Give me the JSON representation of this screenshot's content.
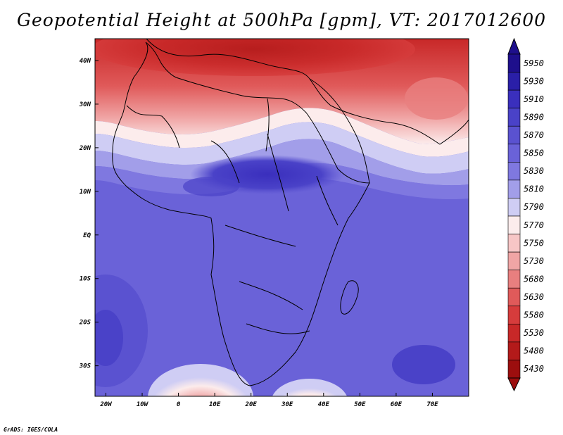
{
  "title": "Geopotential Height at 500hPa [gpm], VT: 2017012600",
  "credit": "GrADS: IGES/COLA",
  "map": {
    "lon_range": [
      -23,
      80
    ],
    "lat_range": [
      -37,
      45
    ],
    "lat_labels": [
      {
        "lat": 40,
        "text": "40N"
      },
      {
        "lat": 30,
        "text": "30N"
      },
      {
        "lat": 20,
        "text": "20N"
      },
      {
        "lat": 10,
        "text": "10N"
      },
      {
        "lat": 0,
        "text": "EQ"
      },
      {
        "lat": -10,
        "text": "10S"
      },
      {
        "lat": -20,
        "text": "20S"
      },
      {
        "lat": -30,
        "text": "30S"
      }
    ],
    "lon_labels": [
      {
        "lon": -20,
        "text": "20W"
      },
      {
        "lon": -10,
        "text": "10W"
      },
      {
        "lon": 0,
        "text": "0"
      },
      {
        "lon": 10,
        "text": "10E"
      },
      {
        "lon": 20,
        "text": "20E"
      },
      {
        "lon": 30,
        "text": "30E"
      },
      {
        "lon": 40,
        "text": "40E"
      },
      {
        "lon": 50,
        "text": "50E"
      },
      {
        "lon": 60,
        "text": "60E"
      },
      {
        "lon": 70,
        "text": "70E"
      }
    ]
  },
  "colorbar": {
    "levels": [
      "5950",
      "5930",
      "5910",
      "5890",
      "5870",
      "5850",
      "5830",
      "5810",
      "5790",
      "5770",
      "5750",
      "5730",
      "5680",
      "5630",
      "5580",
      "5530",
      "5480",
      "5430"
    ],
    "colors": [
      "#1e0f8c",
      "#2a1fa8",
      "#3a2fbd",
      "#4a42c8",
      "#5a52d0",
      "#6a62d8",
      "#7f78e0",
      "#a29ee9",
      "#cfcdf4",
      "#fcecec",
      "#f7c6c6",
      "#f0a5a5",
      "#e87f7f",
      "#e05a5a",
      "#d63c3c",
      "#c82828",
      "#b31a1a",
      "#9c0e0e"
    ]
  }
}
